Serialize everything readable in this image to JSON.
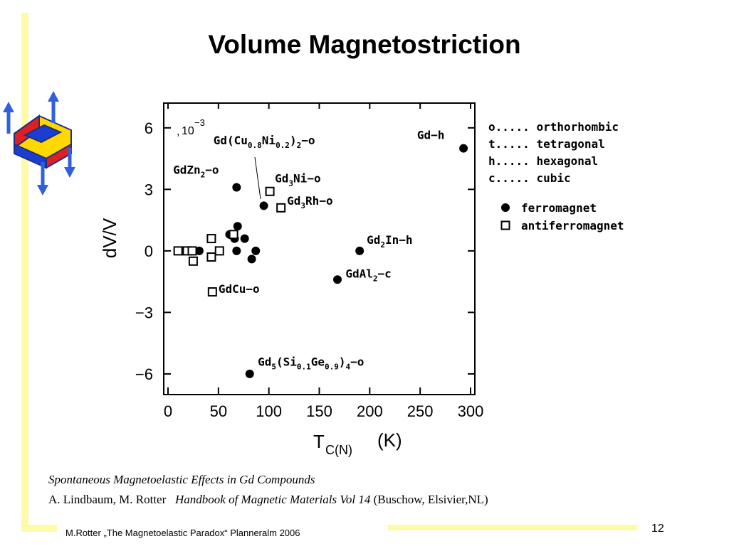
{
  "slide": {
    "title": "Volume Magnetostriction",
    "caption_line1": "Spontaneous Magnetoelastic Effects in Gd Compounds",
    "caption_authors": "A. Lindbaum, M. Rotter",
    "caption_book": "Handbook of Magnetic Materials Vol 14",
    "caption_publisher": "(Buschow, Elsivier,NL)",
    "footer": "M.Rotter „The Magnetoelastic Paradox“ Planneralm 2006",
    "page_number": "12",
    "logo_icon": "magnetostriction-logo-icon",
    "accent_bar_color": "#fdfbaa"
  },
  "chart_data": {
    "type": "scatter",
    "title": "",
    "xlabel_main": "T",
    "xlabel_sub": "C(N)",
    "xlabel_unit": "(K)",
    "ylabel": "dV/V",
    "y_multiplier": "10",
    "y_multiplier_exp": "−3",
    "xlim": [
      0,
      300
    ],
    "ylim": [
      -6.8,
      7.0
    ],
    "x_ticks": [
      0,
      50,
      100,
      150,
      200,
      250,
      300
    ],
    "x_tick_labels": [
      "0",
      "50",
      "100",
      "150",
      "200",
      "250",
      "300"
    ],
    "y_ticks": [
      6,
      3,
      0,
      -3,
      -6
    ],
    "y_tick_labels": [
      "6",
      "3",
      "0",
      "−3",
      "−6"
    ],
    "legend_structure": [
      {
        "key": "o",
        "dots": ".....",
        "label": "orthorhombic"
      },
      {
        "key": "t",
        "dots": ".....",
        "label": "tetragonal"
      },
      {
        "key": "h",
        "dots": ".....",
        "label": "hexagonal"
      },
      {
        "key": "c",
        "dots": ".....",
        "label": "cubic"
      }
    ],
    "legend_order": [
      {
        "marker": "circle",
        "label": "ferromagnet"
      },
      {
        "marker": "square",
        "label": "antiferromagnet"
      }
    ],
    "series": [
      {
        "name": "ferromagnet",
        "marker": "circle",
        "points": [
          {
            "x": 68,
            "y": 3.1
          },
          {
            "x": 95,
            "y": 2.2
          },
          {
            "x": 293,
            "y": 5.0
          },
          {
            "x": 190,
            "y": 0.0
          },
          {
            "x": 168,
            "y": -1.4
          },
          {
            "x": 81,
            "y": -6.0
          },
          {
            "x": 31,
            "y": 0.0
          },
          {
            "x": 68,
            "y": 0.0
          },
          {
            "x": 87,
            "y": 0.0
          },
          {
            "x": 83,
            "y": -0.4
          },
          {
            "x": 61,
            "y": 0.8
          },
          {
            "x": 66,
            "y": 0.6
          },
          {
            "x": 69,
            "y": 1.2
          },
          {
            "x": 76,
            "y": 0.6
          }
        ]
      },
      {
        "name": "antiferromagnet",
        "marker": "square",
        "points": [
          {
            "x": 101,
            "y": 2.9
          },
          {
            "x": 112,
            "y": 2.1
          },
          {
            "x": 44,
            "y": -2.0
          },
          {
            "x": 10,
            "y": 0.0
          },
          {
            "x": 19,
            "y": 0.0
          },
          {
            "x": 24,
            "y": 0.0
          },
          {
            "x": 25,
            "y": -0.5
          },
          {
            "x": 43,
            "y": 0.6
          },
          {
            "x": 43,
            "y": -0.3
          },
          {
            "x": 51,
            "y": 0.0
          },
          {
            "x": 65,
            "y": 0.8
          }
        ]
      }
    ],
    "annotations": [
      {
        "parts": [
          [
            "Gd(Cu",
            ""
          ],
          [
            "0.8",
            "sub"
          ],
          [
            "Ni",
            ""
          ],
          [
            "0.2",
            "sub"
          ],
          [
            ")",
            ""
          ],
          [
            "2",
            "sub"
          ],
          [
            "−o",
            ""
          ]
        ],
        "x": 45,
        "y": 5.2
      },
      {
        "parts": [
          [
            "GdZn",
            ""
          ],
          [
            "2",
            "sub"
          ],
          [
            "−o",
            ""
          ]
        ],
        "x": 5,
        "y": 3.75
      },
      {
        "parts": [
          [
            "Gd",
            ""
          ],
          [
            "3",
            "sub"
          ],
          [
            "Ni−o",
            ""
          ]
        ],
        "x": 106,
        "y": 3.35
      },
      {
        "parts": [
          [
            "Gd",
            ""
          ],
          [
            "3",
            "sub"
          ],
          [
            "Rh−o",
            ""
          ]
        ],
        "x": 118,
        "y": 2.25
      },
      {
        "parts": [
          [
            "Gd−h",
            ""
          ]
        ],
        "x": 247,
        "y": 5.45
      },
      {
        "parts": [
          [
            "Gd",
            ""
          ],
          [
            "2",
            "sub"
          ],
          [
            "In−h",
            ""
          ]
        ],
        "x": 197,
        "y": 0.35
      },
      {
        "parts": [
          [
            "GdAl",
            ""
          ],
          [
            "2",
            "sub"
          ],
          [
            "−c",
            ""
          ]
        ],
        "x": 176,
        "y": -1.3
      },
      {
        "parts": [
          [
            "GdCu−o",
            ""
          ]
        ],
        "x": 50,
        "y": -2.05
      },
      {
        "parts": [
          [
            "Gd",
            ""
          ],
          [
            "5",
            "sub"
          ],
          [
            "(Si",
            ""
          ],
          [
            "0.1",
            "sub"
          ],
          [
            "Ge",
            ""
          ],
          [
            "0.9",
            "sub"
          ],
          [
            ")",
            ""
          ],
          [
            "4",
            "sub"
          ],
          [
            "−o",
            ""
          ]
        ],
        "x": 89,
        "y": -5.6
      }
    ]
  }
}
